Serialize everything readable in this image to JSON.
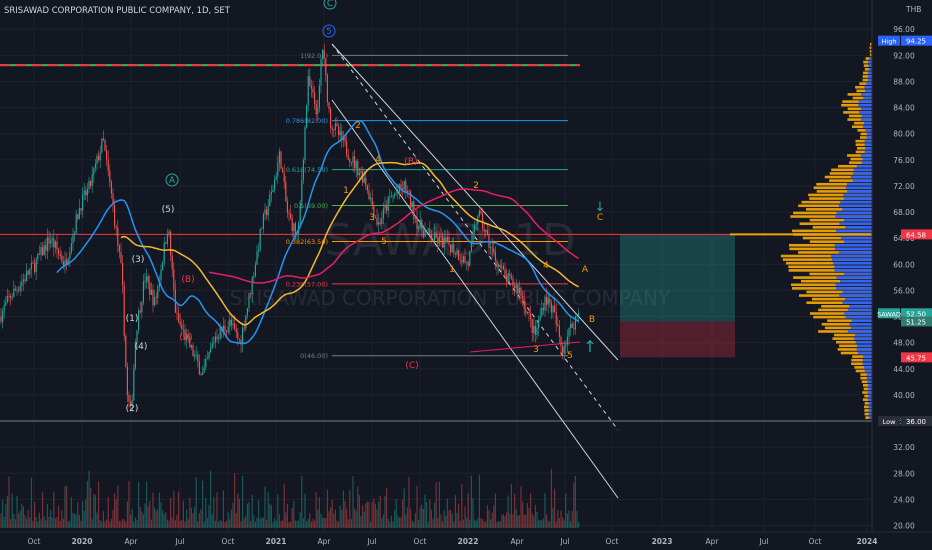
{
  "chart_data": {
    "type": "candlestick",
    "title": "SRISAWAD CORPORATION PUBLIC COMPANY, 1D, SET",
    "watermark_symbol": "SAWAD, 1D",
    "watermark_name": "SRISAWAD CORPORATION PUBLIC COMPANY",
    "currency": "THB",
    "ylim": [
      18,
      97
    ],
    "y_ticks": [
      20,
      24,
      28,
      32,
      36,
      40,
      44,
      48,
      52,
      56,
      60,
      64,
      68,
      72,
      76,
      80,
      84,
      88,
      92,
      96
    ],
    "y_ticks_labels": [
      "20.00",
      "24.00",
      "28.00",
      "32.00",
      "36.00",
      "40.00",
      "44.00",
      "48.00",
      "52.00",
      "56.00",
      "60.00",
      "64.00",
      "68.00",
      "72.00",
      "76.00",
      "80.00",
      "84.00",
      "88.00",
      "92.00",
      "96.00"
    ],
    "x_ticks": [
      "Oct",
      "2020",
      "Apr",
      "Jul",
      "Oct",
      "2021",
      "Apr",
      "Jul",
      "Oct",
      "2022",
      "Apr",
      "Jul",
      "Oct",
      "2023",
      "Apr",
      "Jul",
      "Oct",
      "2024"
    ],
    "price_labels": [
      {
        "text": "High",
        "value": "94.25",
        "price": 94.25,
        "color": "#2962ff"
      },
      {
        "text": "",
        "value": "64.58",
        "price": 64.58,
        "color": "#f23645"
      },
      {
        "text": "SAWAD",
        "value": "52.50",
        "price": 52.5,
        "color": "#26a69a"
      },
      {
        "text": "",
        "value": "51.25",
        "price": 51.25,
        "color": "#2e7d6f"
      },
      {
        "text": "",
        "value": "45.75",
        "price": 45.75,
        "color": "#f23645"
      },
      {
        "text": "Low",
        "value": "36.00",
        "price": 36.0,
        "color": "#2a2e39"
      }
    ],
    "fibonacci": [
      {
        "label": "1(92.00)",
        "price": 92.0,
        "color": "#787b86"
      },
      {
        "label": "0.786(82.00)",
        "price": 82.0,
        "color": "#2196f3"
      },
      {
        "label": "0.618(74.50)",
        "price": 74.5,
        "color": "#26a69a"
      },
      {
        "label": "0.5(69.00)",
        "price": 69.0,
        "color": "#4caf50"
      },
      {
        "label": "0.382(63.50)",
        "price": 63.5,
        "color": "#ff9800"
      },
      {
        "label": "0.236(57.00)",
        "price": 57.0,
        "color": "#f23645"
      },
      {
        "label": "0(46.00)",
        "price": 46.0,
        "color": "#787b86"
      }
    ],
    "horizontal_lines": [
      {
        "price": 90.5,
        "color": "#f23645",
        "style": "dashed-green"
      },
      {
        "price": 64.58,
        "color": "#f23645",
        "style": "solid"
      },
      {
        "price": 36.0,
        "color": "#787b86",
        "style": "solid"
      }
    ],
    "wave_labels": [
      {
        "text": "C",
        "circled": true,
        "color": "#26a69a"
      },
      {
        "text": "5",
        "circled": true,
        "color": "#2962ff"
      },
      {
        "text": "A",
        "circled": true,
        "color": "#26a69a"
      },
      {
        "text": "(5)",
        "circled": false,
        "color": "#d1d4dc"
      },
      {
        "text": "(3)",
        "circled": false,
        "color": "#d1d4dc"
      },
      {
        "text": "(1)",
        "circled": false,
        "color": "#d1d4dc"
      },
      {
        "text": "(4)",
        "circled": false,
        "color": "#d1d4dc"
      },
      {
        "text": "(2)",
        "circled": false,
        "color": "#d1d4dc"
      },
      {
        "text": "(B)",
        "circled": false,
        "color": "#f23645"
      },
      {
        "text": "(A)",
        "circled": false,
        "color": "#f23645"
      },
      {
        "text": "(C)",
        "circled": false,
        "color": "#f23645"
      },
      {
        "text": "(B)",
        "circled": false,
        "color": "#f23645"
      },
      {
        "text": "2",
        "circled": false,
        "color": "#ff9800"
      },
      {
        "text": "4",
        "circled": false,
        "color": "#ff9800"
      },
      {
        "text": "1",
        "circled": false,
        "color": "#ff9800"
      },
      {
        "text": "3",
        "circled": false,
        "color": "#ff9800"
      },
      {
        "text": "5",
        "circled": false,
        "color": "#ff9800"
      },
      {
        "text": "A",
        "circled": false,
        "color": "#ff9800"
      },
      {
        "text": "B",
        "circled": false,
        "color": "#ff9800"
      },
      {
        "text": "C",
        "circled": false,
        "color": "#ff9800"
      }
    ],
    "volume_profile_note": "",
    "projection_box": {
      "target": 64.58,
      "entry": 51.25,
      "stop": 45.75
    }
  },
  "colors": {
    "background": "#131722",
    "up": "#26a69a",
    "down": "#ef5350",
    "ma_blue": "#2196f3",
    "ma_orange": "#f5b82e",
    "ma_red": "#e91e63",
    "profile_orange": "#f0a30a",
    "profile_blue": "#2962ff"
  }
}
